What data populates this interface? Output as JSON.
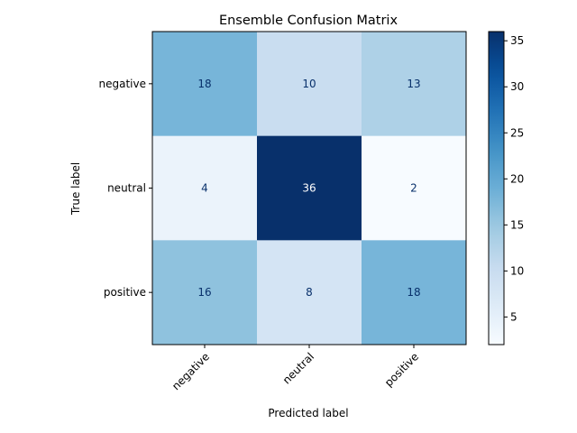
{
  "chart_data": {
    "type": "heatmap",
    "title": "Ensemble Confusion Matrix",
    "xlabel": "Predicted label",
    "ylabel": "True label",
    "x_categories": [
      "negative",
      "neutral",
      "positive"
    ],
    "y_categories": [
      "negative",
      "neutral",
      "positive"
    ],
    "values": [
      [
        18,
        10,
        13
      ],
      [
        4,
        36,
        2
      ],
      [
        16,
        8,
        18
      ]
    ],
    "colormap": "Blues",
    "color_range": [
      2,
      36
    ],
    "colorbar_ticks": [
      5,
      10,
      15,
      20,
      25,
      30,
      35
    ],
    "x_tick_rotation_deg": 45,
    "grid": false
  }
}
